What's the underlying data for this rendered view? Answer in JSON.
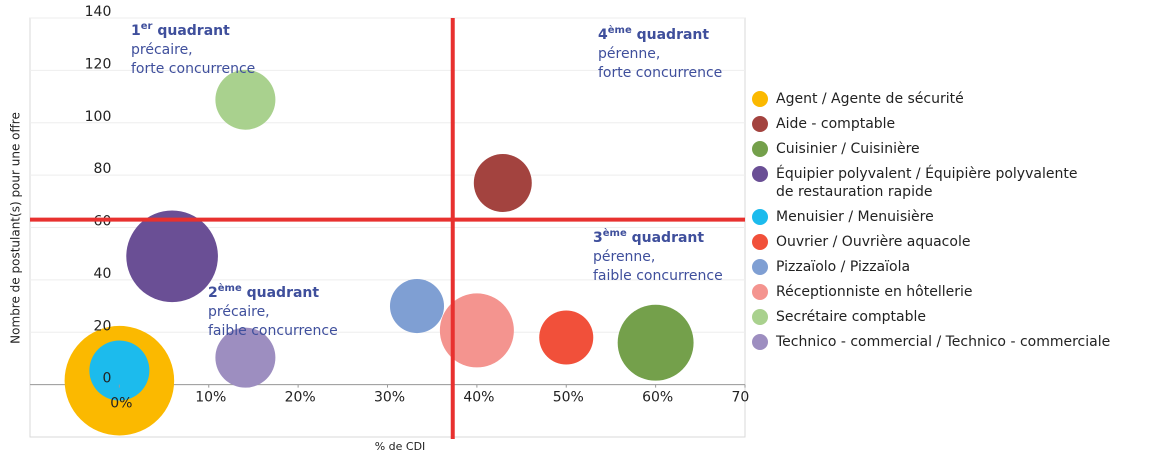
{
  "chart_data": {
    "type": "bubble",
    "x_label": "% de CDI",
    "y_label": "Nombre de postulant(s) pour une offre",
    "xlim": [
      -10,
      70
    ],
    "ylim": [
      -20,
      140
    ],
    "xticks": [
      {
        "value": 0,
        "label": "0%"
      },
      {
        "value": 10,
        "label": "10%"
      },
      {
        "value": 20,
        "label": "20%"
      },
      {
        "value": 30,
        "label": "30%"
      },
      {
        "value": 40,
        "label": "40%"
      },
      {
        "value": 50,
        "label": "50%"
      },
      {
        "value": 60,
        "label": "60%"
      },
      {
        "value": 70,
        "label": "70%"
      }
    ],
    "yticks": [
      0,
      20,
      40,
      60,
      80,
      100,
      120,
      140
    ],
    "grid": true,
    "legend": "right",
    "reference_lines": {
      "x": 37.3,
      "y": 63,
      "color": "#e8312f"
    },
    "series": [
      {
        "name": "Agent / Agente de sécurité",
        "color": "#fbb900",
        "x": [
          0
        ],
        "values": [
          1.5
        ],
        "sizes": [
          30
        ]
      },
      {
        "name": "Aide - comptable",
        "color": "#a3433f",
        "x": [
          42.9
        ],
        "values": [
          77
        ],
        "sizes": [
          8.4
        ]
      },
      {
        "name": "Cuisinier / Cuisinière",
        "color": "#74a04b",
        "x": [
          60
        ],
        "values": [
          16
        ],
        "sizes": [
          14.4
        ]
      },
      {
        "name": "Équipier polyvalent / Équipière polyvalente\nde restauration rapide",
        "color": "#6a4f95",
        "x": [
          5.9
        ],
        "values": [
          49
        ],
        "sizes": [
          21
        ]
      },
      {
        "name": "Menuisier / Menuisière",
        "color": "#1cbbed",
        "x": [
          0
        ],
        "values": [
          5.4
        ],
        "sizes": [
          9
        ]
      },
      {
        "name": "Ouvrier / Ouvrière aquacole",
        "color": "#f1503a",
        "x": [
          50
        ],
        "values": [
          18
        ],
        "sizes": [
          7.3
        ]
      },
      {
        "name": "Pizzaïolo / Pizzaïola",
        "color": "#7f9fd3",
        "x": [
          33.3
        ],
        "values": [
          30
        ],
        "sizes": [
          7.3
        ]
      },
      {
        "name": "Réceptionniste en hôtellerie",
        "color": "#f4948f",
        "x": [
          40
        ],
        "values": [
          20.7
        ],
        "sizes": [
          13.7
        ]
      },
      {
        "name": "Secrétaire comptable",
        "color": "#a9d18e",
        "x": [
          14.1
        ],
        "values": [
          108.8
        ],
        "sizes": [
          9
        ]
      },
      {
        "name": "Technico - commercial / Technico - commerciale",
        "color": "#9d8ec0",
        "x": [
          14.1
        ],
        "values": [
          10.3
        ],
        "sizes": [
          9
        ]
      }
    ],
    "annotations": [
      {
        "number": "1",
        "suffix": "er",
        "label": " quadrant",
        "lines": [
          "précaire,",
          "forte concurrence"
        ]
      },
      {
        "number": "2",
        "suffix": "ème",
        "label": " quadrant",
        "lines": [
          "précaire,",
          "faible concurrence"
        ]
      },
      {
        "number": "3",
        "suffix": "ème",
        "label": " quadrant",
        "lines": [
          "pérenne,",
          "faible concurrence"
        ]
      },
      {
        "number": "4",
        "suffix": "ème",
        "label": " quadrant",
        "lines": [
          "pérenne,",
          "forte concurrence"
        ]
      }
    ]
  }
}
